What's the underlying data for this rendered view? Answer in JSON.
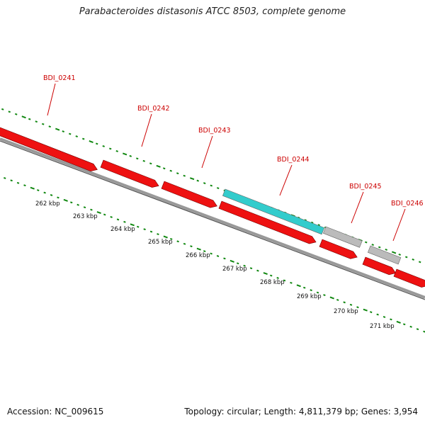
{
  "title": "Parabacteroides distasonis ATCC 8503, complete genome",
  "footer": {
    "accession": "Accession: NC_009615",
    "summary": "Topology: circular; Length: 4,811,379 bp; Genes: 3,954"
  },
  "colors": {
    "gene_forward": "#ee1111",
    "gene_highlight": "#33cccc",
    "gene_other": "#bbbbbb",
    "backbone": "#777777",
    "ruler": "#118811",
    "label": "#cc0000"
  },
  "map": {
    "strand_inner_tracks": "red genes on reverse strand, grey/cyan on forward"
  },
  "genes": [
    {
      "name": "BDI_0241",
      "kind": "forward"
    },
    {
      "name": "BDI_0242",
      "kind": "forward"
    },
    {
      "name": "BDI_0243",
      "kind": "forward"
    },
    {
      "name": "BDI_0244",
      "kind": "highlight"
    },
    {
      "name": "BDI_0245",
      "kind": "other"
    },
    {
      "name": "BDI_0246",
      "kind": "other"
    }
  ],
  "ruler_labels": [
    "262 kbp",
    "263 kbp",
    "264 kbp",
    "265 kbp",
    "266 kbp",
    "267 kbp",
    "268 kbp",
    "269 kbp",
    "270 kbp",
    "271 kbp"
  ]
}
